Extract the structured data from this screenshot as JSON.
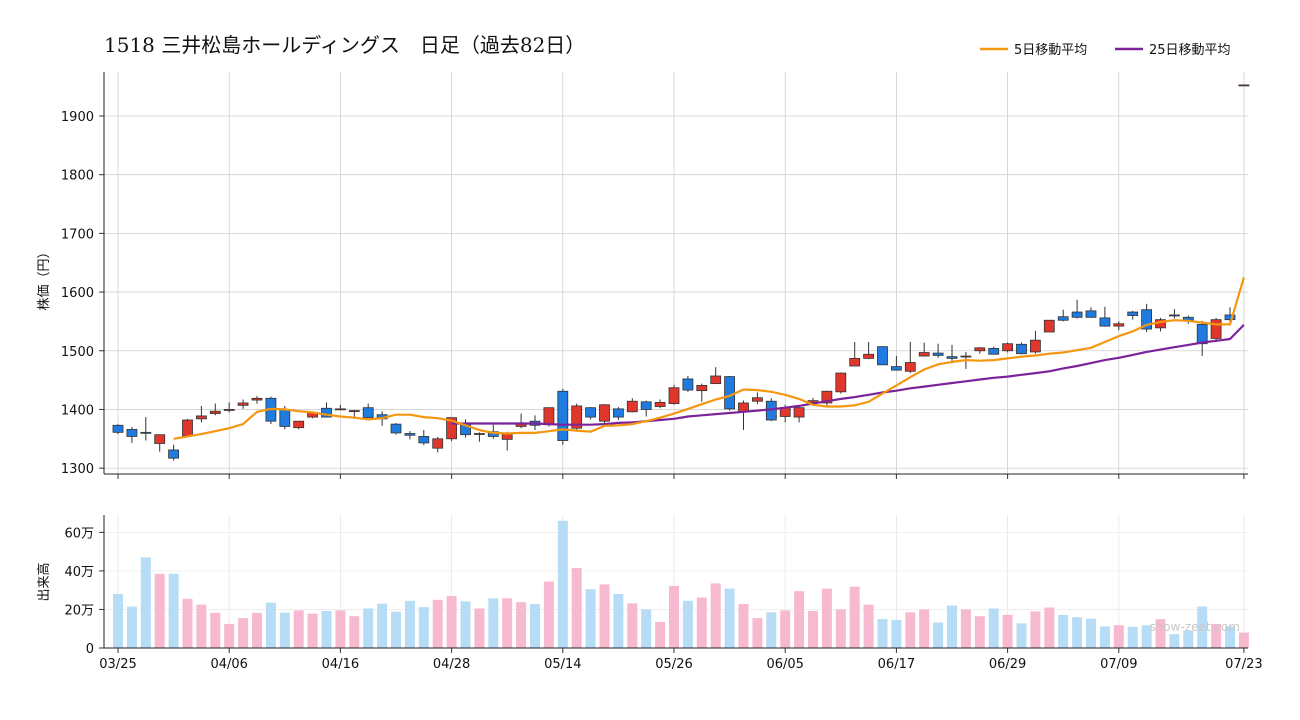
{
  "title": "1518 三井松島ホールディングス　日足（過去82日）",
  "watermark": "show-zeet.com",
  "legend": [
    {
      "label": "5日移動平均",
      "color": "#f5960f"
    },
    {
      "label": "25日移動平均",
      "color": "#7b239b"
    }
  ],
  "colors": {
    "up": "#e0362c",
    "down": "#1f7be0",
    "vol_up": "#f7b9d0",
    "vol_down": "#b7dcf6"
  },
  "chart_data": [
    {
      "type": "candlestick",
      "ylabel": "株価（円）",
      "ylim": [
        1290,
        1975
      ],
      "yticks": [
        1300,
        1400,
        1500,
        1600,
        1700,
        1800,
        1900
      ],
      "xtick_labels": [
        "03/25",
        "04/06",
        "04/16",
        "04/28",
        "05/14",
        "05/26",
        "06/05",
        "06/17",
        "06/29",
        "07/09",
        "07/23"
      ],
      "xtick_index": [
        0,
        8,
        16,
        24,
        32,
        40,
        48,
        56,
        64,
        72,
        81
      ],
      "grid": true,
      "legend_position": "top-right",
      "ohlc": [
        [
          1373,
          1375,
          1358,
          1361
        ],
        [
          1366,
          1370,
          1343,
          1354
        ],
        [
          1361,
          1387,
          1347,
          1360
        ],
        [
          1342,
          1357,
          1328,
          1357
        ],
        [
          1331,
          1340,
          1313,
          1317
        ],
        [
          1355,
          1384,
          1353,
          1382
        ],
        [
          1384,
          1406,
          1378,
          1389
        ],
        [
          1393,
          1410,
          1390,
          1397
        ],
        [
          1399,
          1412,
          1395,
          1400
        ],
        [
          1407,
          1417,
          1401,
          1411
        ],
        [
          1416,
          1423,
          1410,
          1419
        ],
        [
          1419,
          1422,
          1375,
          1380
        ],
        [
          1400,
          1406,
          1366,
          1371
        ],
        [
          1369,
          1380,
          1366,
          1380
        ],
        [
          1387,
          1395,
          1385,
          1395
        ],
        [
          1402,
          1412,
          1386,
          1387
        ],
        [
          1401,
          1408,
          1399,
          1401
        ],
        [
          1397,
          1399,
          1384,
          1398
        ],
        [
          1403,
          1410,
          1386,
          1386
        ],
        [
          1391,
          1397,
          1372,
          1384
        ],
        [
          1375,
          1377,
          1357,
          1360
        ],
        [
          1359,
          1363,
          1349,
          1356
        ],
        [
          1354,
          1365,
          1339,
          1343
        ],
        [
          1334,
          1353,
          1327,
          1350
        ],
        [
          1350,
          1386,
          1346,
          1386
        ],
        [
          1376,
          1383,
          1352,
          1357
        ],
        [
          1358,
          1361,
          1345,
          1359
        ],
        [
          1362,
          1374,
          1350,
          1354
        ],
        [
          1349,
          1362,
          1330,
          1359
        ],
        [
          1371,
          1393,
          1368,
          1377
        ],
        [
          1380,
          1390,
          1365,
          1373
        ],
        [
          1374,
          1403,
          1371,
          1403
        ],
        [
          1431,
          1435,
          1340,
          1347
        ],
        [
          1368,
          1410,
          1362,
          1406
        ],
        [
          1403,
          1404,
          1383,
          1387
        ],
        [
          1380,
          1409,
          1375,
          1408
        ],
        [
          1401,
          1404,
          1382,
          1387
        ],
        [
          1396,
          1419,
          1395,
          1414
        ],
        [
          1413,
          1415,
          1388,
          1400
        ],
        [
          1405,
          1417,
          1402,
          1412
        ],
        [
          1410,
          1442,
          1408,
          1437
        ],
        [
          1452,
          1457,
          1430,
          1433
        ],
        [
          1432,
          1444,
          1413,
          1441
        ],
        [
          1444,
          1472,
          1444,
          1457
        ],
        [
          1456,
          1457,
          1398,
          1401
        ],
        [
          1396,
          1415,
          1365,
          1411
        ],
        [
          1414,
          1429,
          1409,
          1420
        ],
        [
          1414,
          1419,
          1380,
          1382
        ],
        [
          1388,
          1408,
          1378,
          1403
        ],
        [
          1387,
          1406,
          1378,
          1403
        ],
        [
          1412,
          1420,
          1408,
          1415
        ],
        [
          1411,
          1432,
          1406,
          1431
        ],
        [
          1430,
          1463,
          1427,
          1462
        ],
        [
          1474,
          1515,
          1474,
          1487
        ],
        [
          1487,
          1515,
          1486,
          1494
        ],
        [
          1507,
          1508,
          1476,
          1476
        ],
        [
          1473,
          1491,
          1466,
          1467
        ],
        [
          1465,
          1515,
          1462,
          1480
        ],
        [
          1491,
          1514,
          1490,
          1497
        ],
        [
          1496,
          1512,
          1488,
          1492
        ],
        [
          1490,
          1510,
          1479,
          1487
        ],
        [
          1490,
          1498,
          1469,
          1491
        ],
        [
          1500,
          1506,
          1495,
          1505
        ],
        [
          1504,
          1507,
          1494,
          1494
        ],
        [
          1500,
          1514,
          1497,
          1512
        ],
        [
          1511,
          1514,
          1494,
          1495
        ],
        [
          1498,
          1534,
          1495,
          1518
        ],
        [
          1532,
          1552,
          1532,
          1552
        ],
        [
          1558,
          1570,
          1550,
          1552
        ],
        [
          1566,
          1587,
          1555,
          1557
        ],
        [
          1568,
          1574,
          1556,
          1557
        ],
        [
          1556,
          1575,
          1541,
          1542
        ],
        [
          1542,
          1550,
          1535,
          1546
        ],
        [
          1566,
          1568,
          1553,
          1560
        ],
        [
          1570,
          1580,
          1532,
          1537
        ],
        [
          1539,
          1556,
          1533,
          1553
        ],
        [
          1561,
          1571,
          1555,
          1560
        ],
        [
          1557,
          1560,
          1546,
          1552
        ],
        [
          1545,
          1551,
          1491,
          1512
        ],
        [
          1521,
          1556,
          1515,
          1553
        ],
        [
          1561,
          1574,
          1543,
          1553
        ],
        [
          1953,
          1953,
          1953,
          1953
        ]
      ],
      "ma5": [
        null,
        null,
        null,
        null,
        1350,
        1354,
        1358,
        1363,
        1368,
        1375,
        1396,
        1401,
        1400,
        1397,
        1395,
        1391,
        1388,
        1386,
        1383,
        1385,
        1391,
        1391,
        1387,
        1385,
        1381,
        1373,
        1365,
        1360,
        1359,
        1360,
        1360,
        1363,
        1366,
        1364,
        1362,
        1372,
        1373,
        1375,
        1380,
        1386,
        1393,
        1401,
        1409,
        1417,
        1423,
        1434,
        1433,
        1430,
        1425,
        1418,
        1408,
        1405,
        1405,
        1407,
        1413,
        1427,
        1441,
        1455,
        1468,
        1477,
        1481,
        1484,
        1483,
        1484,
        1487,
        1490,
        1492,
        1495,
        1497,
        1501,
        1505,
        1515,
        1525,
        1533,
        1544,
        1549,
        1552,
        1551,
        1548,
        1545,
        1545,
        1625
      ],
      "ma25": [
        null,
        null,
        null,
        null,
        null,
        null,
        null,
        null,
        null,
        null,
        null,
        null,
        null,
        null,
        null,
        null,
        null,
        null,
        null,
        null,
        null,
        null,
        null,
        null,
        1376,
        1376,
        1376,
        1376,
        1376,
        1376,
        1376,
        1375,
        1374,
        1374,
        1374,
        1375,
        1377,
        1378,
        1380,
        1382,
        1384,
        1388,
        1390,
        1392,
        1394,
        1396,
        1398,
        1400,
        1403,
        1406,
        1410,
        1414,
        1418,
        1421,
        1425,
        1429,
        1432,
        1436,
        1439,
        1442,
        1445,
        1448,
        1451,
        1454,
        1456,
        1459,
        1462,
        1465,
        1470,
        1474,
        1479,
        1484,
        1488,
        1493,
        1498,
        1502,
        1506,
        1510,
        1514,
        1517,
        1520,
        1544
      ]
    },
    {
      "type": "bar",
      "ylabel": "出来高",
      "ylim": [
        0,
        69000
      ],
      "yticks": [
        0,
        200000,
        400000,
        600000
      ],
      "ytick_labels": [
        "0",
        "20万",
        "40万",
        "60万"
      ],
      "grid": true,
      "volume": [
        280000,
        215000,
        470000,
        385000,
        385000,
        255000,
        225000,
        182000,
        125000,
        155000,
        182000,
        235000,
        183000,
        195000,
        178000,
        192000,
        195000,
        165000,
        205000,
        230000,
        188000,
        245000,
        212000,
        250000,
        270000,
        242000,
        205000,
        258000,
        258000,
        238000,
        228000,
        345000,
        660000,
        415000,
        305000,
        330000,
        280000,
        232000,
        200000,
        135000,
        322000,
        245000,
        262000,
        335000,
        308000,
        228000,
        155000,
        185000,
        195000,
        295000,
        192000,
        308000,
        200000,
        318000,
        225000,
        150000,
        145000,
        185000,
        200000,
        132000,
        220000,
        200000,
        165000,
        205000,
        172000,
        128000,
        190000,
        210000,
        172000,
        160000,
        152000,
        112000,
        118000,
        110000,
        118000,
        150000,
        72000,
        90000,
        215000,
        125000,
        112000,
        80000
      ]
    }
  ]
}
